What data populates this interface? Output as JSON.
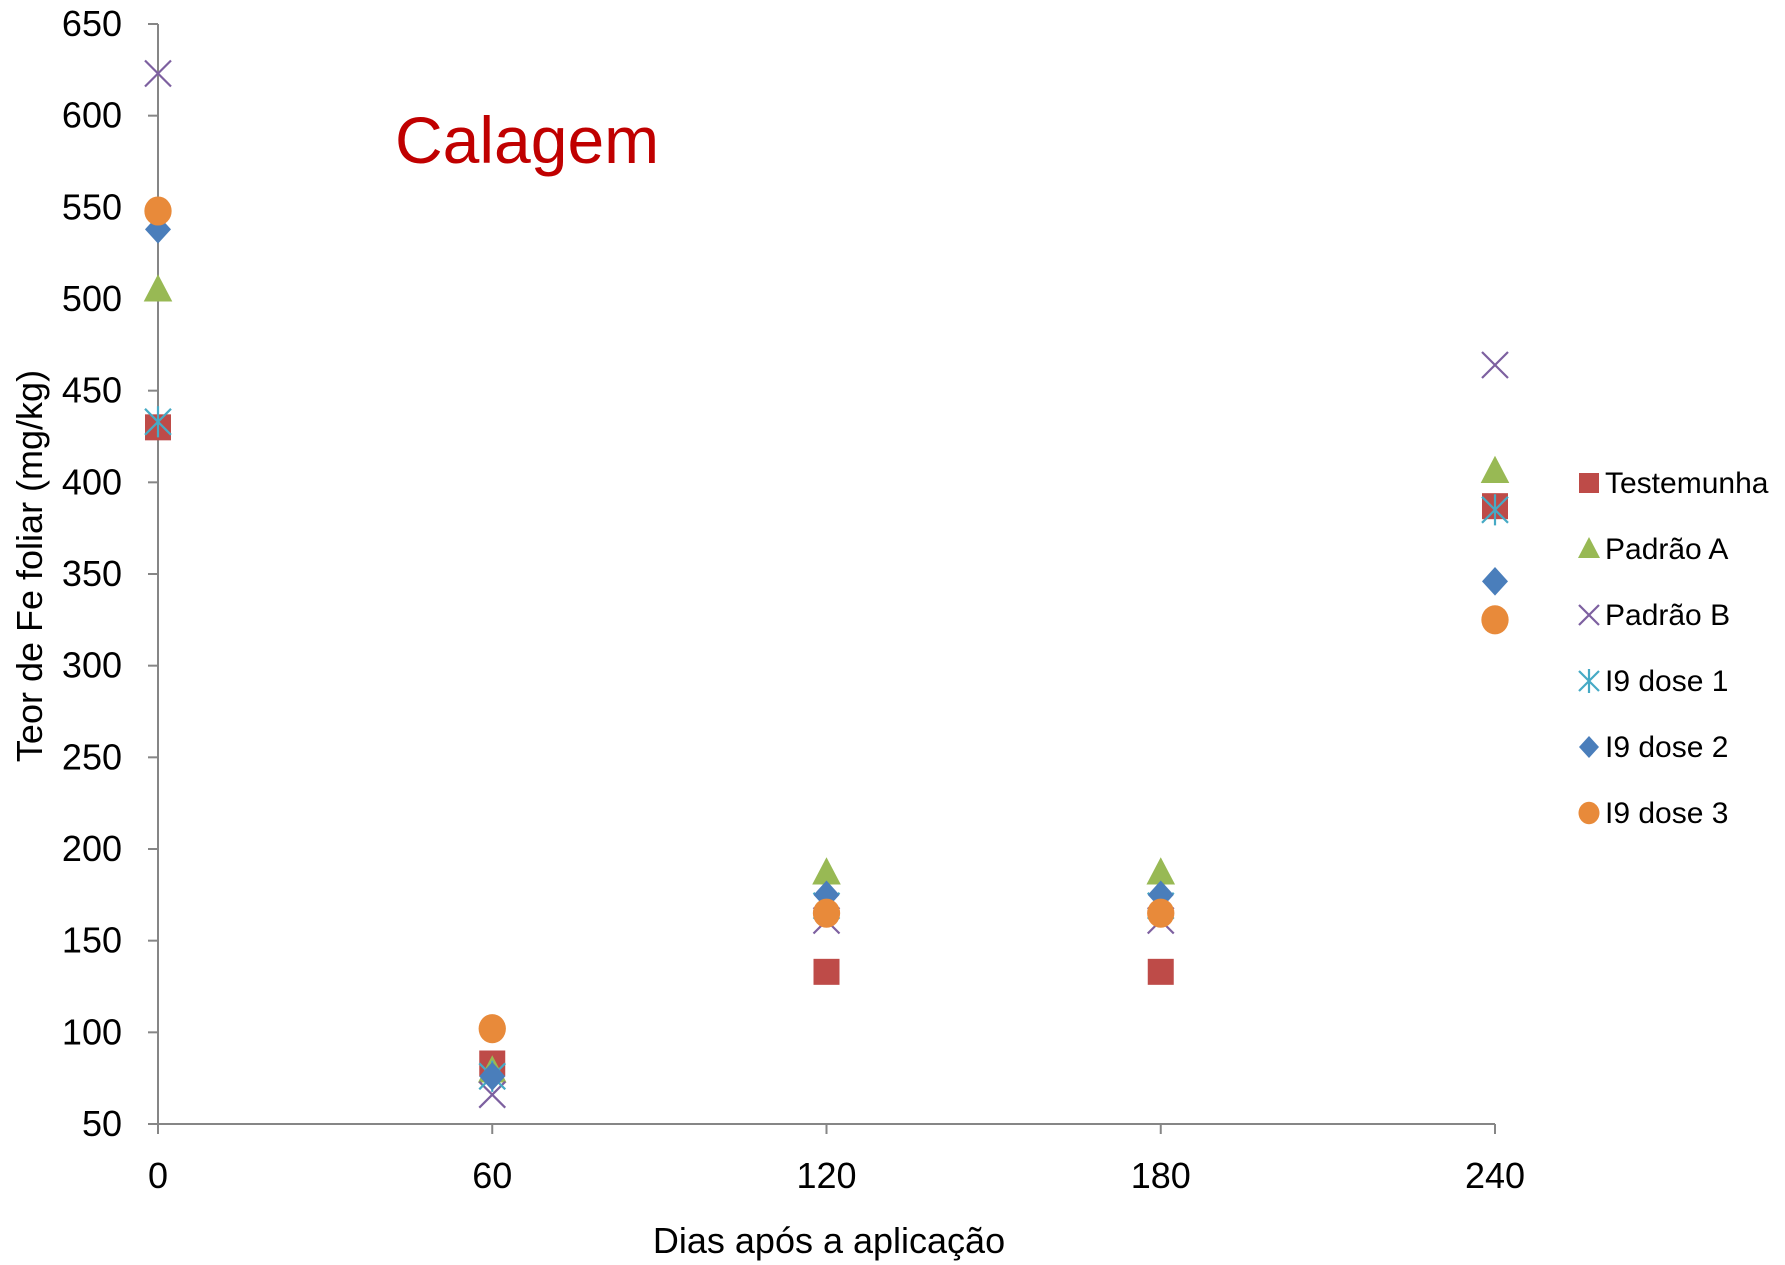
{
  "chart_data": {
    "type": "scatter",
    "title": "Calagem",
    "title_color": "#C00000",
    "xlabel": "Dias após a aplicação",
    "ylabel": "Teor de Fe foliar (mg/kg)",
    "x": [
      0,
      60,
      120,
      180,
      240
    ],
    "x_ticks": [
      "0",
      "60",
      "120",
      "180",
      "240"
    ],
    "y_ticks": [
      "50",
      "100",
      "150",
      "200",
      "250",
      "300",
      "350",
      "400",
      "450",
      "500",
      "550",
      "600",
      "650"
    ],
    "xlim": [
      0,
      240
    ],
    "ylim": [
      50,
      650
    ],
    "grid": false,
    "legend_position": "right",
    "series": [
      {
        "name": "Testemunha",
        "marker": "square",
        "color": "#BE4B48",
        "values": [
          430,
          83,
          133,
          133,
          387
        ]
      },
      {
        "name": "Padrão A",
        "marker": "triangle",
        "color": "#98B954",
        "values": [
          505,
          79,
          187,
          187,
          406
        ]
      },
      {
        "name": "Padrão B",
        "marker": "x",
        "color": "#7D60A0",
        "values": [
          623,
          66,
          161,
          161,
          464
        ]
      },
      {
        "name": "I9 dose 1",
        "marker": "star",
        "color": "#46AAC5",
        "values": [
          433,
          76,
          169,
          169,
          385
        ]
      },
      {
        "name": "I9 dose 2",
        "marker": "diamond",
        "color": "#4A7EBB",
        "values": [
          538,
          76,
          175,
          175,
          346
        ]
      },
      {
        "name": "I9 dose 3",
        "marker": "circle",
        "color": "#E88A3A",
        "values": [
          548,
          102,
          165,
          165,
          325
        ]
      }
    ]
  }
}
